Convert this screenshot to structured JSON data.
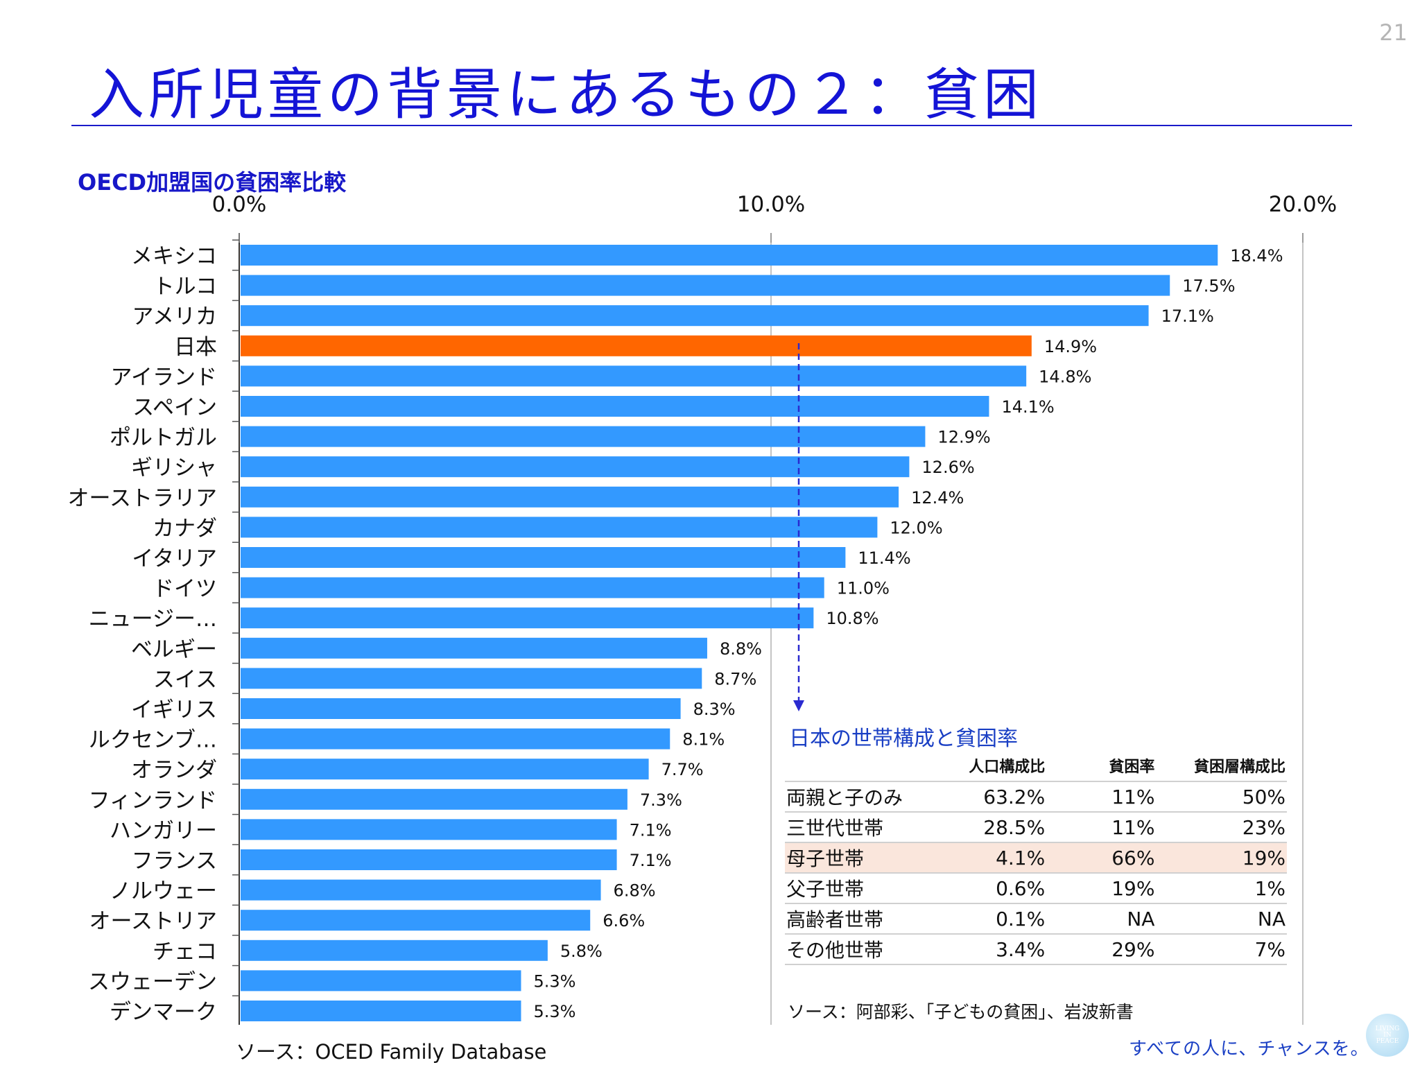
{
  "page_number": "21",
  "title": "入所児童の背景にあるもの２：貧困",
  "chart_title": "OECD加盟国の貧困率比較",
  "source_left": "ソース：OCED Family Database",
  "chart_data": {
    "type": "bar",
    "orientation": "horizontal",
    "title": "OECD加盟国の貧困率比較",
    "xlim": [
      0,
      20
    ],
    "x_ticks": [
      "0.0%",
      "10.0%",
      "20.0%"
    ],
    "grid": true,
    "categories": [
      "メキシコ",
      "トルコ",
      "アメリカ",
      "日本",
      "アイランド",
      "スペイン",
      "ポルトガル",
      "ギリシャ",
      "オーストラリア",
      "カナダ",
      "イタリア",
      "ドイツ",
      "ニュージー…",
      "ベルギー",
      "スイス",
      "イギリス",
      "ルクセンブ…",
      "オランダ",
      "フィンランド",
      "ハンガリー",
      "フランス",
      "ノルウェー",
      "オーストリア",
      "チェコ",
      "スウェーデン",
      "デンマーク"
    ],
    "values": [
      18.4,
      17.5,
      17.1,
      14.9,
      14.8,
      14.1,
      12.9,
      12.6,
      12.4,
      12.0,
      11.4,
      11.0,
      10.8,
      8.8,
      8.7,
      8.3,
      8.1,
      7.7,
      7.3,
      7.1,
      7.1,
      6.8,
      6.6,
      5.8,
      5.3,
      5.3
    ],
    "data_labels": [
      "18.4%",
      "17.5%",
      "17.1%",
      "14.9%",
      "14.8%",
      "14.1%",
      "12.9%",
      "12.6%",
      "12.4%",
      "12.0%",
      "11.4%",
      "11.0%",
      "10.8%",
      "8.8%",
      "8.7%",
      "8.3%",
      "8.1%",
      "7.7%",
      "7.3%",
      "7.1%",
      "7.1%",
      "6.8%",
      "6.6%",
      "5.8%",
      "5.3%",
      "5.3%"
    ],
    "highlight_category": "日本",
    "colors": {
      "bar": "#3399ff",
      "highlight": "#ff6600",
      "arrow": "#2a2ad0",
      "grid": "#b0b0b0"
    }
  },
  "table": {
    "title": "日本の世帯構成と貧困率",
    "headers": [
      "",
      "人口構成比",
      "貧困率",
      "貧困層構成比"
    ],
    "rows": [
      [
        "両親と子のみ",
        "63.2%",
        "11%",
        "50%"
      ],
      [
        "三世代世帯",
        "28.5%",
        "11%",
        "23%"
      ],
      [
        "母子世帯",
        "4.1%",
        "66%",
        "19%"
      ],
      [
        "父子世帯",
        "0.6%",
        "19%",
        "1%"
      ],
      [
        "高齢者世帯",
        "0.1%",
        "NA",
        "NA"
      ],
      [
        "その他世帯",
        "3.4%",
        "29%",
        "7%"
      ]
    ],
    "highlight_row": 2,
    "source": "ソース：阿部彩、「子どもの貧困」、岩波新書"
  },
  "slogan": "すべての人に、チャンスを。",
  "logo_text": [
    "LIVING",
    "IN",
    "PEACE"
  ]
}
